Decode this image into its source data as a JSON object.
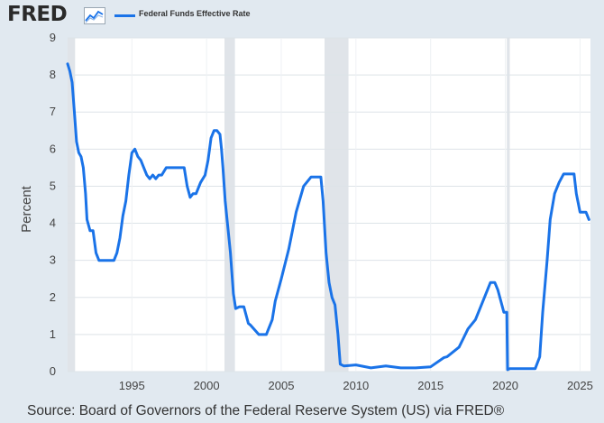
{
  "brand": {
    "logo_text": "FRED",
    "logo_icon": "trend-line-icon"
  },
  "legend": {
    "label": "Federal Funds Effective Rate",
    "color": "#1a73e8"
  },
  "source_text": "Source: Board of Governors of the Federal Reserve System (US) via FRED®",
  "colors": {
    "background": "#e1e9f0",
    "plot_background": "#ffffff",
    "recession": "#e0e4e9",
    "line": "#1a73e8"
  },
  "chart_data": {
    "type": "line",
    "title": "",
    "xlabel": "",
    "ylabel": "Percent",
    "xlim": [
      1990.7,
      2025.7
    ],
    "ylim": [
      0,
      9
    ],
    "yticks": [
      0,
      1,
      2,
      3,
      4,
      5,
      6,
      7,
      8,
      9
    ],
    "xticks": [
      1995,
      2000,
      2005,
      2010,
      2015,
      2020,
      2025
    ],
    "grid": true,
    "legend_position": "top",
    "recessions": [
      [
        1990.7,
        1991.2
      ],
      [
        2001.2,
        2001.9
      ],
      [
        2007.9,
        2009.5
      ],
      [
        2020.1,
        2020.3
      ]
    ],
    "series": [
      {
        "name": "Federal Funds Effective Rate",
        "color": "#1a73e8",
        "x": [
          1990.7,
          1990.85,
          1991.0,
          1991.15,
          1991.3,
          1991.45,
          1991.6,
          1991.75,
          1991.9,
          1992.0,
          1992.2,
          1992.4,
          1992.6,
          1992.8,
          1993.0,
          1993.2,
          1993.4,
          1993.6,
          1993.8,
          1994.0,
          1994.2,
          1994.4,
          1994.6,
          1994.8,
          1995.0,
          1995.2,
          1995.4,
          1995.6,
          1995.8,
          1996.0,
          1996.2,
          1996.4,
          1996.6,
          1996.8,
          1997.0,
          1997.3,
          1997.6,
          1997.9,
          1998.2,
          1998.5,
          1998.7,
          1998.9,
          1999.1,
          1999.3,
          1999.6,
          1999.9,
          2000.1,
          2000.3,
          2000.5,
          2000.7,
          2000.9,
          2001.0,
          2001.1,
          2001.25,
          2001.4,
          2001.6,
          2001.8,
          2001.95,
          2002.2,
          2002.5,
          2002.8,
          2002.95,
          2003.5,
          2003.8,
          2004.0,
          2004.4,
          2004.6,
          2005.0,
          2005.5,
          2006.0,
          2006.5,
          2007.0,
          2007.5,
          2007.65,
          2007.8,
          2008.0,
          2008.2,
          2008.4,
          2008.6,
          2008.8,
          2008.95,
          2009.2,
          2010.0,
          2011.0,
          2012.0,
          2013.0,
          2014.0,
          2015.0,
          2015.9,
          2016.1,
          2016.9,
          2017.2,
          2017.5,
          2018.0,
          2018.5,
          2019.0,
          2019.3,
          2019.5,
          2019.7,
          2019.9,
          2020.1,
          2020.15,
          2020.3,
          2021.0,
          2022.0,
          2022.3,
          2022.5,
          2022.8,
          2023.0,
          2023.3,
          2023.6,
          2023.9,
          2024.6,
          2024.75,
          2025.0,
          2025.4,
          2025.6
        ],
        "values": [
          8.3,
          8.1,
          7.8,
          7.0,
          6.2,
          5.9,
          5.8,
          5.5,
          4.8,
          4.1,
          3.8,
          3.8,
          3.2,
          3.0,
          3.0,
          3.0,
          3.0,
          3.0,
          3.0,
          3.2,
          3.6,
          4.2,
          4.6,
          5.3,
          5.9,
          6.0,
          5.8,
          5.7,
          5.5,
          5.3,
          5.2,
          5.3,
          5.2,
          5.3,
          5.3,
          5.5,
          5.5,
          5.5,
          5.5,
          5.5,
          5.0,
          4.7,
          4.8,
          4.8,
          5.1,
          5.3,
          5.7,
          6.3,
          6.5,
          6.5,
          6.4,
          6.0,
          5.5,
          4.6,
          4.0,
          3.2,
          2.1,
          1.7,
          1.75,
          1.75,
          1.3,
          1.25,
          1.0,
          1.0,
          1.0,
          1.4,
          1.9,
          2.5,
          3.3,
          4.3,
          5.0,
          5.25,
          5.25,
          5.25,
          4.6,
          3.2,
          2.4,
          2.0,
          1.8,
          1.0,
          0.2,
          0.15,
          0.18,
          0.1,
          0.15,
          0.1,
          0.1,
          0.13,
          0.38,
          0.4,
          0.66,
          0.9,
          1.15,
          1.4,
          1.9,
          2.4,
          2.4,
          2.2,
          1.9,
          1.6,
          1.6,
          0.05,
          0.08,
          0.08,
          0.08,
          0.4,
          1.6,
          3.0,
          4.1,
          4.8,
          5.1,
          5.33,
          5.33,
          4.8,
          4.3,
          4.3,
          4.1
        ]
      }
    ]
  }
}
